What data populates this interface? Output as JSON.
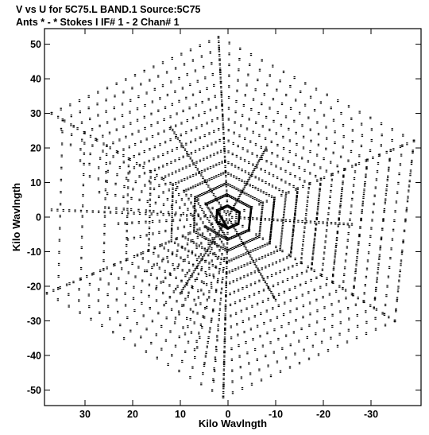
{
  "chart_data": {
    "type": "scatter",
    "title_line1": "V vs U for 5C75.L BAND.1   Source:5C75",
    "title_line2": "Ants * - *    Stokes I  IF# 1 - 2  Chan# 1",
    "xlabel": "Kilo Wavlngth",
    "ylabel": "Kilo Wavlngth",
    "xlim": [
      38.5,
      -40.5
    ],
    "ylim": [
      -54.5,
      54.5
    ],
    "xticks": [
      30,
      20,
      10,
      0,
      -10,
      -20,
      -30
    ],
    "xtick_labels": [
      "30",
      "20",
      "10",
      "0",
      "-10",
      "-20",
      "-30"
    ],
    "yticks": [
      50,
      40,
      30,
      20,
      10,
      0,
      -10,
      -20,
      -30,
      -40,
      -50
    ],
    "ytick_labels": [
      "50",
      "40",
      "30",
      "20",
      "10",
      "0",
      "-10",
      "-20",
      "-30",
      "-40",
      "-50"
    ],
    "arms": [
      {
        "end": [
          2,
          52
        ],
        "n": 38
      },
      {
        "end": [
          37,
          30
        ],
        "n": 26
      },
      {
        "end": [
          -39,
          22
        ],
        "n": 26
      },
      {
        "end": [
          -35,
          -30
        ],
        "n": 26
      },
      {
        "end": [
          38,
          -22
        ],
        "n": 26
      },
      {
        "end": [
          1,
          -52
        ],
        "n": 38
      }
    ],
    "outer_arm_pairs": [
      [
        0,
        1
      ],
      [
        1,
        5
      ],
      [
        5,
        3
      ],
      [
        3,
        2
      ],
      [
        2,
        0
      ]
    ],
    "inner_ring_pairs": [
      [
        4,
        3
      ],
      [
        4,
        2
      ]
    ],
    "grid": false,
    "legend": "none"
  }
}
